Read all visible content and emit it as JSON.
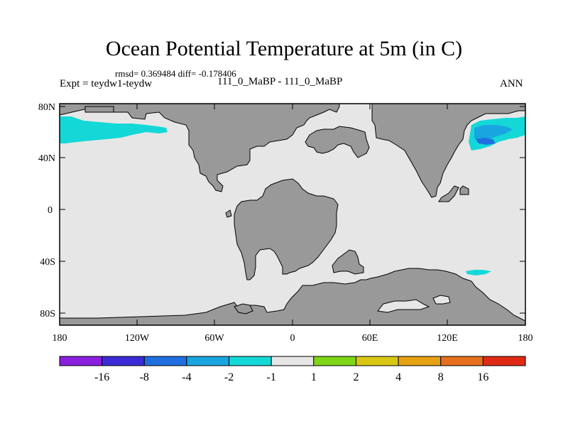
{
  "title": "Ocean Potential Temperature at 5m (in C)",
  "stats_line": "rmsd= 0.369484 diff= -0.178406",
  "experiment_label": "Expt = teydw1-teydw",
  "case_label": "111_0_MaBP - 111_0_MaBP",
  "season_label": "ANN",
  "lat_ticks": [
    "80N",
    "40N",
    "0",
    "40S",
    "80S"
  ],
  "lon_ticks": [
    "180",
    "120W",
    "60W",
    "0",
    "60E",
    "120E",
    "180"
  ],
  "colorbar": {
    "labels": [
      "-16",
      "-8",
      "-4",
      "-2",
      "-1",
      "1",
      "2",
      "4",
      "8",
      "16"
    ],
    "colors": [
      "#8a1fe0",
      "#3c2bd6",
      "#1f6fe0",
      "#19a5e0",
      "#14d8d8",
      "#e6e6e6",
      "#7fd617",
      "#d8c814",
      "#e6a214",
      "#e6701e",
      "#e02a14"
    ]
  },
  "colors": {
    "ocean": "#e6e6e6",
    "land": "#999999",
    "anomaly_cyan": "#14d8d8",
    "anomaly_lightblue": "#19a5e0",
    "anomaly_blue": "#1f6fe0"
  }
}
